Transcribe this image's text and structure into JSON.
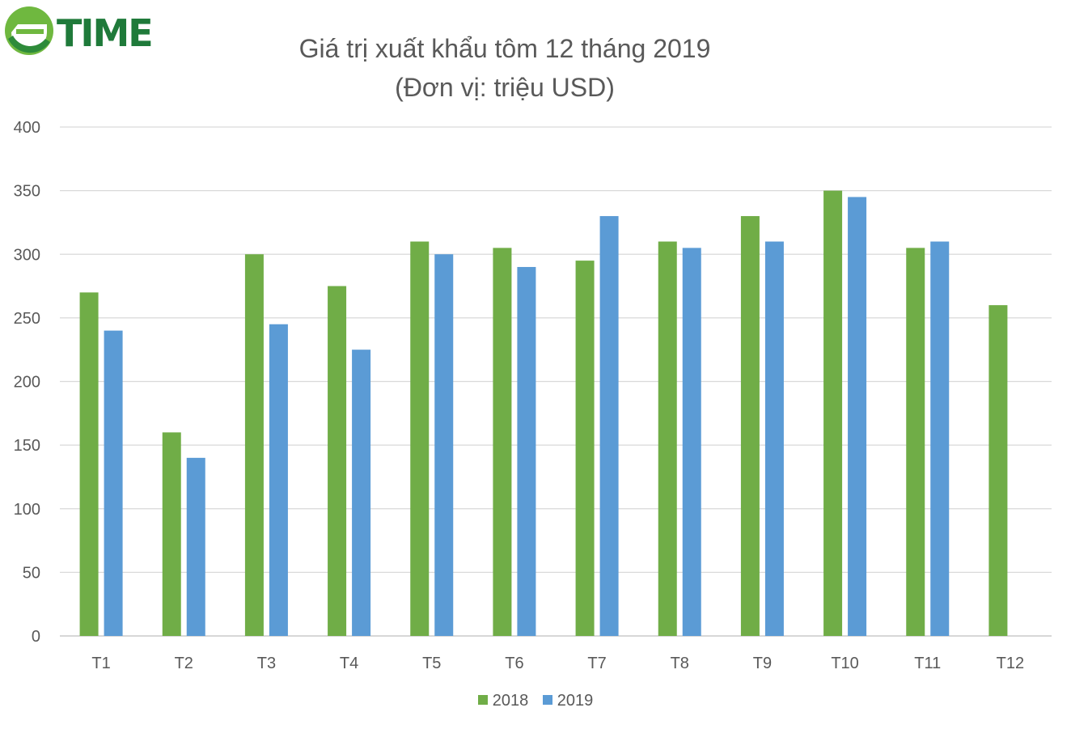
{
  "logo": {
    "text": "TIME"
  },
  "colors": {
    "s2018": "#70ad47",
    "s2019": "#5b9bd5",
    "grid": "#d9d9d9",
    "text": "#595959"
  },
  "chart_data": {
    "type": "bar",
    "title": "Giá trị xuất khẩu tôm 12 tháng 2019",
    "subtitle": "(Đơn vị: triệu USD)",
    "categories": [
      "T1",
      "T2",
      "T3",
      "T4",
      "T5",
      "T6",
      "T7",
      "T8",
      "T9",
      "T10",
      "T11",
      "T12"
    ],
    "series": [
      {
        "name": "2018",
        "color": "#70ad47",
        "values": [
          270,
          160,
          300,
          275,
          310,
          305,
          295,
          310,
          330,
          350,
          305,
          260
        ]
      },
      {
        "name": "2019",
        "color": "#5b9bd5",
        "values": [
          240,
          140,
          245,
          225,
          300,
          290,
          330,
          305,
          310,
          345,
          310,
          null
        ]
      }
    ],
    "ylim": [
      0,
      400
    ],
    "yticks": [
      0,
      50,
      100,
      150,
      200,
      250,
      300,
      350,
      400
    ],
    "grid": true,
    "legend": "bottom"
  }
}
